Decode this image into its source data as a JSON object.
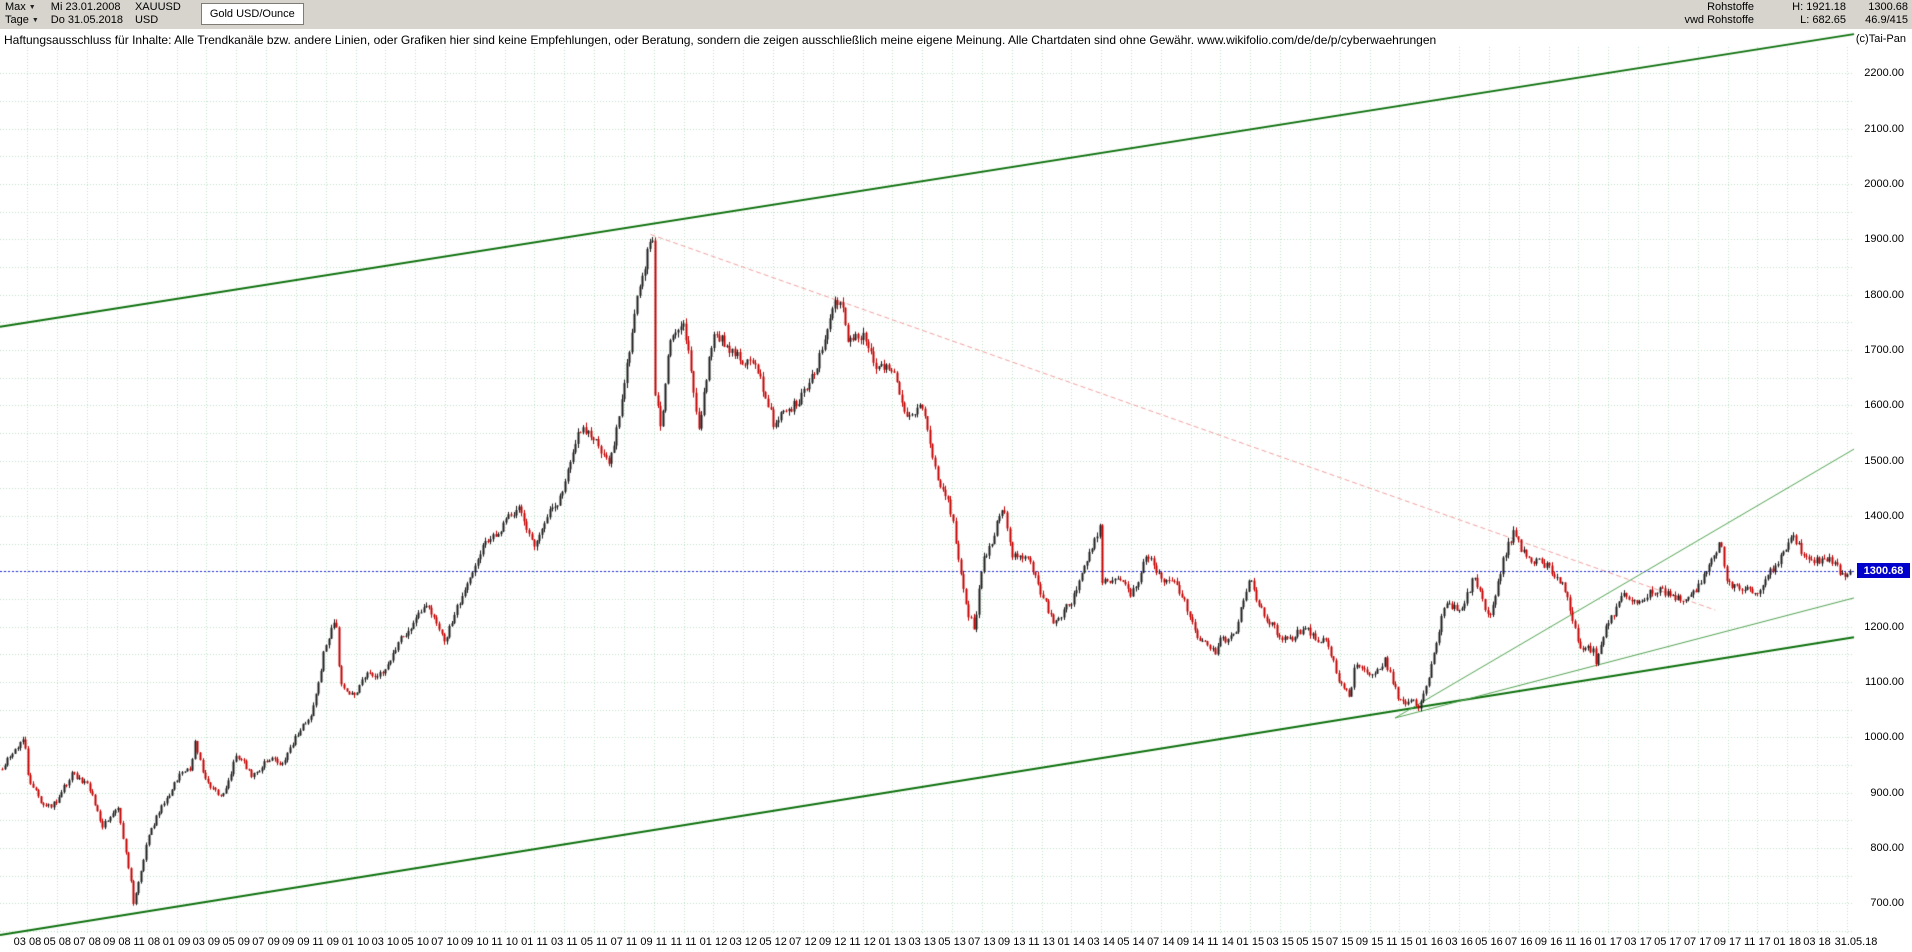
{
  "header": {
    "range_selector": "Max",
    "period_selector": "Tage",
    "start_date": "Mi 23.01.2008",
    "end_date": "Do 31.05.2018",
    "symbol": "XAUUSD",
    "currency": "USD",
    "instrument_title": "Gold USD/Ounce",
    "category": "Rohstoffe",
    "feed": "vwd Rohstoffe",
    "high_label": "H: 1921.18",
    "low_label": "L: 682.65",
    "last_price": "1300.68",
    "range_stat": "46.9/415"
  },
  "icons": {
    "chevron_down": "▼"
  },
  "disclaimer": "Haftungsausschluss für Inhalte: Alle Trendkanäle bzw. andere Linien, oder Grafiken hier sind keine Empfehlungen, oder Beratung, sondern die zeigen ausschließlich meine eigene Meinung. Alle Chartdaten sind ohne Gewähr.  www.wikifolio.com/de/de/p/cyberwaehrungen",
  "copyright": "(c)Tai-Pan",
  "chart_data": {
    "type": "candlestick",
    "title": "Gold USD/Ounce",
    "symbol": "XAUUSD",
    "period_shown": "23.01.2008 - 31.05.2018",
    "high": 1921.18,
    "low": 682.65,
    "last_price": 1300.68,
    "x_domain": [
      2008.055,
      2018.415
    ],
    "ylim": [
      640,
      2280
    ],
    "grid": {
      "h_step": 50,
      "v_step_months": 2,
      "color": "#bfe3c4"
    },
    "y_tick_labels": [
      "700.00",
      "800.00",
      "900.00",
      "1000.00",
      "1100.00",
      "1200.00",
      "1300.00",
      "1400.00",
      "1500.00",
      "1600.00",
      "1700.00",
      "1800.00",
      "1900.00",
      "2000.00",
      "2100.00",
      "2200.00"
    ],
    "x_ticks_start": {
      "year": 2008,
      "month": 3,
      "step_months": 2
    },
    "x_tick_labels": [
      "03 08",
      "05 08",
      "07 08",
      "09 08",
      "11 08",
      "01 09",
      "03 09",
      "05 09",
      "07 09",
      "09 09",
      "11 09",
      "01 10",
      "03 10",
      "05 10",
      "07 10",
      "09 10",
      "11 10",
      "01 11",
      "03 11",
      "05 11",
      "07 11",
      "09 11",
      "11 11",
      "01 12",
      "03 12",
      "05 12",
      "07 12",
      "09 12",
      "11 12",
      "01 13",
      "03 13",
      "05 13",
      "07 13",
      "09 13",
      "11 13",
      "01 14",
      "03 14",
      "05 14",
      "07 14",
      "09 14",
      "11 14",
      "01 15",
      "03 15",
      "05 15",
      "07 15",
      "09 15",
      "11 15",
      "01 16",
      "03 16",
      "05 16",
      "07 16",
      "09 16",
      "11 16",
      "01 17",
      "03 17",
      "05 17",
      "07 17",
      "09 17",
      "11 17",
      "01 18",
      "03 18"
    ],
    "end_axis_label": "31.05.18",
    "monthly_closes": {
      "start": "2008-01",
      "values": [
        920,
        970,
        935,
        875,
        890,
        930,
        915,
        835,
        880,
        725,
        815,
        875,
        925,
        940,
        920,
        890,
        975,
        930,
        955,
        950,
        1000,
        1040,
        1175,
        1095,
        1080,
        1115,
        1115,
        1180,
        1215,
        1240,
        1170,
        1248,
        1308,
        1360,
        1385,
        1420,
        1335,
        1410,
        1440,
        1565,
        1535,
        1500,
        1630,
        1825,
        1620,
        1720,
        1745,
        1565,
        1735,
        1710,
        1670,
        1665,
        1560,
        1600,
        1615,
        1690,
        1775,
        1720,
        1715,
        1675,
        1660,
        1580,
        1595,
        1475,
        1390,
        1235,
        1310,
        1395,
        1330,
        1325,
        1250,
        1205,
        1245,
        1325,
        1285,
        1290,
        1250,
        1325,
        1285,
        1285,
        1210,
        1170,
        1175,
        1185,
        1285,
        1215,
        1185,
        1185,
        1190,
        1170,
        1095,
        1135,
        1115,
        1140,
        1065,
        1060,
        1115,
        1235,
        1235,
        1290,
        1215,
        1320,
        1350,
        1310,
        1315,
        1275,
        1175,
        1150,
        1210,
        1250,
        1245,
        1265,
        1270,
        1240,
        1270,
        1320,
        1280,
        1270,
        1275,
        1300,
        1345,
        1320,
        1325,
        1315,
        1300.68
      ]
    },
    "extreme_points": [
      {
        "t": 2008.19,
        "v": 1005
      },
      {
        "t": 2008.8,
        "v": 698
      },
      {
        "t": 2009.14,
        "v": 995
      },
      {
        "t": 2009.93,
        "v": 1210
      },
      {
        "t": 2011.7,
        "v": 1900
      },
      {
        "t": 2011.75,
        "v": 1545
      },
      {
        "t": 2012.76,
        "v": 1790
      },
      {
        "t": 2013.5,
        "v": 1190
      },
      {
        "t": 2013.66,
        "v": 1420
      },
      {
        "t": 2014.2,
        "v": 1380
      },
      {
        "t": 2014.845,
        "v": 1142
      },
      {
        "t": 2015.6,
        "v": 1080
      },
      {
        "t": 2015.98,
        "v": 1048
      },
      {
        "t": 2016.52,
        "v": 1370
      },
      {
        "t": 2016.965,
        "v": 1125
      },
      {
        "t": 2017.67,
        "v": 1350
      },
      {
        "t": 2018.07,
        "v": 1362
      },
      {
        "t": 2018.413,
        "v": 1300.68
      }
    ],
    "trend_lines": [
      {
        "name": "upper-channel",
        "color": "#0c700c",
        "width": 2,
        "dash": [],
        "from": {
          "t": 2008.055,
          "p": 1742
        },
        "to": {
          "t": 2018.415,
          "p": 2271
        }
      },
      {
        "name": "lower-channel",
        "color": "#0c700c",
        "width": 2,
        "dash": [],
        "from": {
          "t": 2008.055,
          "p": 643
        },
        "to": {
          "t": 2018.415,
          "p": 1181
        }
      },
      {
        "name": "inner-uptrend-steep",
        "color": "#53a253",
        "width": 1,
        "dash": [],
        "from": {
          "t": 2015.85,
          "p": 1035
        },
        "to": {
          "t": 2018.415,
          "p": 1521
        }
      },
      {
        "name": "inner-uptrend-shallow",
        "color": "#53a253",
        "width": 1,
        "dash": [],
        "from": {
          "t": 2015.85,
          "p": 1035
        },
        "to": {
          "t": 2018.415,
          "p": 1252
        }
      },
      {
        "name": "downtrend-resistance",
        "color": "#f0a0a0",
        "width": 1,
        "dash": [
          5,
          3
        ],
        "from": {
          "t": 2011.69,
          "p": 1909
        },
        "to": {
          "t": 2017.64,
          "p": 1230
        }
      }
    ],
    "horizontal_line": {
      "price": 1300.68,
      "color": "#2626d8",
      "dash": [
        2,
        2
      ]
    },
    "candle_colors": {
      "up": "#1c1c1c",
      "down": "#c40000"
    }
  }
}
